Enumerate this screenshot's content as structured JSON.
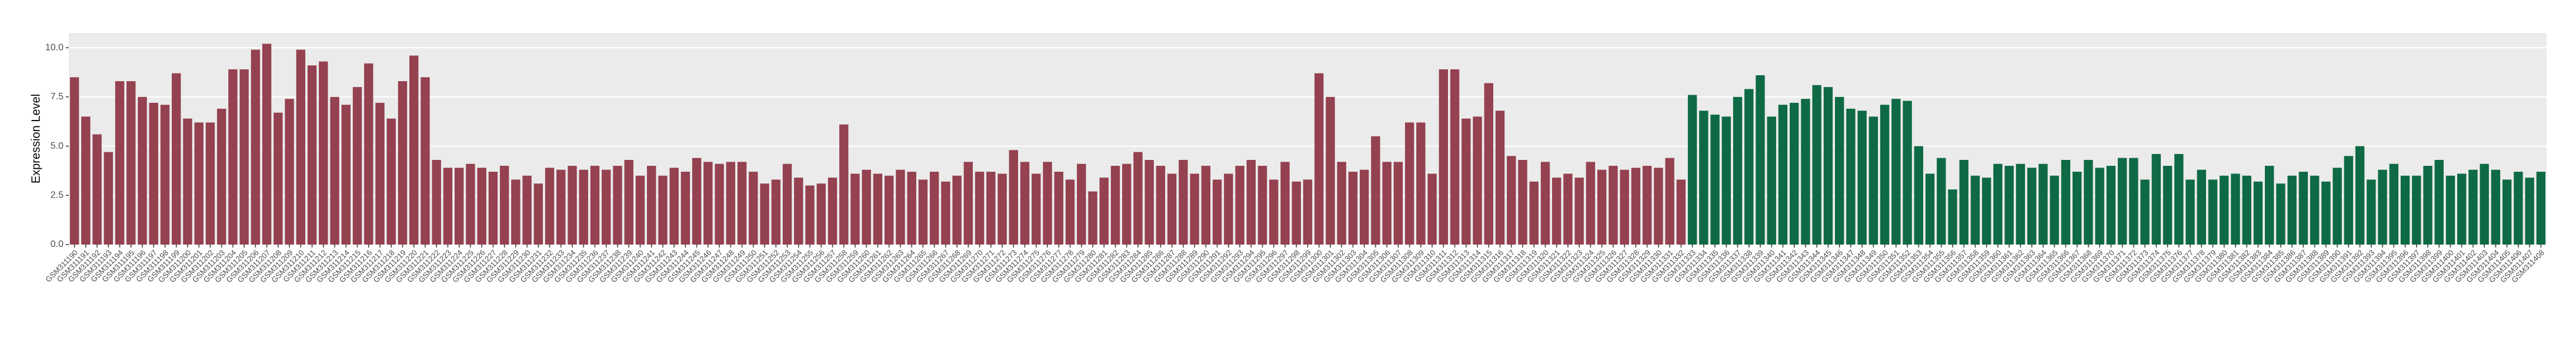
{
  "chart_data": {
    "type": "bar",
    "y_label": "Expression Level",
    "categories": [
      "GSM311190",
      "GSM311191",
      "GSM311192",
      "GSM311193",
      "GSM311194",
      "GSM311195",
      "GSM311196",
      "GSM311197",
      "GSM311198",
      "GSM311199",
      "GSM311200",
      "GSM311201",
      "GSM311202",
      "GSM311203",
      "GSM311204",
      "GSM311205",
      "GSM311206",
      "GSM311207",
      "GSM311208",
      "GSM311209",
      "GSM311210",
      "GSM311211",
      "GSM311212",
      "GSM311213",
      "GSM311214",
      "GSM311215",
      "GSM311216",
      "GSM311217",
      "GSM311218",
      "GSM311219",
      "GSM311220",
      "GSM311221",
      "GSM311222",
      "GSM311223",
      "GSM311224",
      "GSM311225",
      "GSM311226",
      "GSM311227",
      "GSM311228",
      "GSM311229",
      "GSM311230",
      "GSM311231",
      "GSM311232",
      "GSM311233",
      "GSM311234",
      "GSM311235",
      "GSM311236",
      "GSM311237",
      "GSM311238",
      "GSM311239",
      "GSM311240",
      "GSM311241",
      "GSM311242",
      "GSM311243",
      "GSM311244",
      "GSM311245",
      "GSM311246",
      "GSM311247",
      "GSM311248",
      "GSM311249",
      "GSM311250",
      "GSM311251",
      "GSM311252",
      "GSM311253",
      "GSM311254",
      "GSM311255",
      "GSM311256",
      "GSM311257",
      "GSM311258",
      "GSM311259",
      "GSM311260",
      "GSM311261",
      "GSM311262",
      "GSM311263",
      "GSM311264",
      "GSM311265",
      "GSM311266",
      "GSM311267",
      "GSM311268",
      "GSM311269",
      "GSM311270",
      "GSM311271",
      "GSM311272",
      "GSM311273",
      "GSM311274",
      "GSM311275",
      "GSM311276",
      "GSM311277",
      "GSM311278",
      "GSM311279",
      "GSM311280",
      "GSM311281",
      "GSM311282",
      "GSM311283",
      "GSM311284",
      "GSM311285",
      "GSM311286",
      "GSM311287",
      "GSM311288",
      "GSM311289",
      "GSM311290",
      "GSM311291",
      "GSM311292",
      "GSM311293",
      "GSM311294",
      "GSM311295",
      "GSM311296",
      "GSM311297",
      "GSM311298",
      "GSM311299",
      "GSM311300",
      "GSM311301",
      "GSM311302",
      "GSM311303",
      "GSM311304",
      "GSM311305",
      "GSM311306",
      "GSM311307",
      "GSM311308",
      "GSM311309",
      "GSM311310",
      "GSM311311",
      "GSM311312",
      "GSM311313",
      "GSM311314",
      "GSM311315",
      "GSM311316",
      "GSM311317",
      "GSM311318",
      "GSM311319",
      "GSM311320",
      "GSM311321",
      "GSM311322",
      "GSM311323",
      "GSM311324",
      "GSM311325",
      "GSM311326",
      "GSM311327",
      "GSM311328",
      "GSM311329",
      "GSM311330",
      "GSM311331",
      "GSM311332",
      "GSM311333",
      "GSM311334",
      "GSM311335",
      "GSM311336",
      "GSM311337",
      "GSM311338",
      "GSM311339",
      "GSM311340",
      "GSM311341",
      "GSM311342",
      "GSM311343",
      "GSM311344",
      "GSM311345",
      "GSM311346",
      "GSM311347",
      "GSM311348",
      "GSM311349",
      "GSM311350",
      "GSM311351",
      "GSM311352",
      "GSM311353",
      "GSM311354",
      "GSM311355",
      "GSM311356",
      "GSM311357",
      "GSM311358",
      "GSM311359",
      "GSM311360",
      "GSM311361",
      "GSM311362",
      "GSM311363",
      "GSM311364",
      "GSM311365",
      "GSM311366",
      "GSM311367",
      "GSM311368",
      "GSM311369",
      "GSM311370",
      "GSM311371",
      "GSM311372",
      "GSM311373",
      "GSM311374",
      "GSM311375",
      "GSM311376",
      "GSM311377",
      "GSM311378",
      "GSM311379",
      "GSM311380",
      "GSM311381",
      "GSM311382",
      "GSM311383",
      "GSM311384",
      "GSM311385",
      "GSM311386",
      "GSM311387",
      "GSM311388",
      "GSM311389",
      "GSM311390",
      "GSM311391",
      "GSM311392",
      "GSM311393",
      "GSM311394",
      "GSM311395",
      "GSM311396",
      "GSM311397",
      "GSM311398",
      "GSM311399",
      "GSM311400",
      "GSM311401",
      "GSM311402",
      "GSM311403",
      "GSM311404",
      "GSM311405",
      "GSM311406",
      "GSM311407",
      "GSM311408"
    ],
    "series": [
      {
        "color": "#944150",
        "values": [
          8.5,
          6.5,
          5.6,
          4.7,
          8.3,
          8.3,
          7.5,
          7.2,
          7.1,
          8.7,
          6.4,
          6.2,
          6.2,
          6.9,
          8.9,
          8.9,
          9.9,
          10.2,
          6.7,
          7.4,
          9.9,
          9.1,
          9.3,
          7.5,
          7.1,
          8.0,
          9.2,
          7.2,
          6.4,
          8.3,
          9.6,
          8.5,
          4.3,
          3.9,
          3.9,
          4.1,
          3.9,
          3.7,
          4.0,
          3.3,
          3.5,
          3.1,
          3.9,
          3.8,
          4.0,
          3.8,
          4.0,
          3.8,
          4.0,
          4.3,
          3.5,
          4.0,
          3.5,
          3.9,
          3.7,
          4.4,
          4.2,
          4.1,
          4.2,
          4.2,
          3.7,
          3.1,
          3.3,
          4.1,
          3.4,
          3.0,
          3.1,
          3.4,
          6.1,
          3.6,
          3.8,
          3.6,
          3.5,
          3.8,
          3.7,
          3.3,
          3.7,
          3.2,
          3.5,
          4.2,
          3.7,
          3.7,
          3.6,
          4.8,
          4.2,
          3.6,
          4.2,
          3.7,
          3.3,
          4.1,
          2.7,
          3.4,
          4.0,
          4.1,
          4.7,
          4.3,
          4.0,
          3.6,
          4.3,
          3.6,
          4.0,
          3.3,
          3.6,
          4.0,
          4.3,
          4.0,
          3.3,
          4.2,
          3.2,
          3.3,
          8.7,
          7.5,
          4.2,
          3.7,
          3.8,
          5.5,
          4.2,
          4.2,
          6.2,
          6.2,
          3.6,
          8.9,
          8.9,
          6.4,
          6.5,
          8.2,
          6.8,
          4.5,
          4.3,
          3.2,
          4.2,
          3.4,
          3.6,
          3.4,
          4.2,
          3.8,
          4.0,
          3.8,
          3.9,
          4.0,
          3.9,
          4.4,
          3.3,
          null,
          null,
          null,
          null,
          null,
          null,
          null,
          null,
          null,
          null,
          null,
          null,
          null,
          null,
          null,
          null,
          null,
          null,
          null,
          null,
          null,
          null,
          null,
          null,
          null,
          null,
          null,
          null,
          null,
          null,
          null,
          null,
          null,
          null,
          null,
          null,
          null,
          null,
          null,
          null,
          null,
          null,
          null,
          null,
          null,
          null,
          null,
          null,
          null,
          null,
          null,
          null,
          null,
          null,
          null,
          null,
          null,
          null,
          null,
          null,
          null,
          null,
          null,
          null,
          null,
          null,
          null,
          null,
          null,
          null,
          null,
          null,
          null,
          null,
          null,
          null
        ]
      },
      {
        "color": "#0e6a45",
        "values": [
          null,
          null,
          null,
          null,
          null,
          null,
          null,
          null,
          null,
          null,
          null,
          null,
          null,
          null,
          null,
          null,
          null,
          null,
          null,
          null,
          null,
          null,
          null,
          null,
          null,
          null,
          null,
          null,
          null,
          null,
          null,
          null,
          null,
          null,
          null,
          null,
          null,
          null,
          null,
          null,
          null,
          null,
          null,
          null,
          null,
          null,
          null,
          null,
          null,
          null,
          null,
          null,
          null,
          null,
          null,
          null,
          null,
          null,
          null,
          null,
          null,
          null,
          null,
          null,
          null,
          null,
          null,
          null,
          null,
          null,
          null,
          null,
          null,
          null,
          null,
          null,
          null,
          null,
          null,
          null,
          null,
          null,
          null,
          null,
          null,
          null,
          null,
          null,
          null,
          null,
          null,
          null,
          null,
          null,
          null,
          null,
          null,
          null,
          null,
          null,
          null,
          null,
          null,
          null,
          null,
          null,
          null,
          null,
          null,
          null,
          null,
          null,
          null,
          null,
          null,
          null,
          null,
          null,
          null,
          null,
          null,
          null,
          null,
          null,
          null,
          null,
          null,
          null,
          null,
          null,
          null,
          null,
          null,
          null,
          null,
          null,
          null,
          null,
          null,
          null,
          null,
          null,
          null,
          7.6,
          6.8,
          6.6,
          6.5,
          7.5,
          7.9,
          8.6,
          6.5,
          7.1,
          7.2,
          7.4,
          8.1,
          8.0,
          7.5,
          6.9,
          6.8,
          6.5,
          7.1,
          7.4,
          7.3,
          5.0,
          3.6,
          4.4,
          2.8,
          4.3,
          3.5,
          3.4,
          4.1,
          4.0,
          4.1,
          3.9,
          4.1,
          3.5,
          4.3,
          3.7,
          4.3,
          3.9,
          4.0,
          4.4,
          4.4,
          3.3,
          4.6,
          4.0,
          4.6,
          3.3,
          3.8,
          3.3,
          3.5,
          3.6,
          3.5,
          3.2,
          4.0,
          3.1,
          3.5,
          3.7,
          3.5,
          3.2,
          3.9,
          4.5,
          5.0,
          3.3,
          3.8,
          4.1,
          3.5,
          3.5,
          4.0,
          4.3,
          3.5,
          3.6,
          3.8,
          4.1,
          3.8,
          3.3,
          3.7,
          3.4,
          3.7
        ]
      }
    ],
    "ylim": [
      0,
      10.75
    ],
    "yticks": [
      {
        "value": 0,
        "label": "0.0"
      },
      {
        "value": 2.5,
        "label": "2.5"
      },
      {
        "value": 5,
        "label": "5.0"
      },
      {
        "value": 7.5,
        "label": "7.5"
      },
      {
        "value": 10,
        "label": "10.0"
      }
    ],
    "grid": true
  }
}
